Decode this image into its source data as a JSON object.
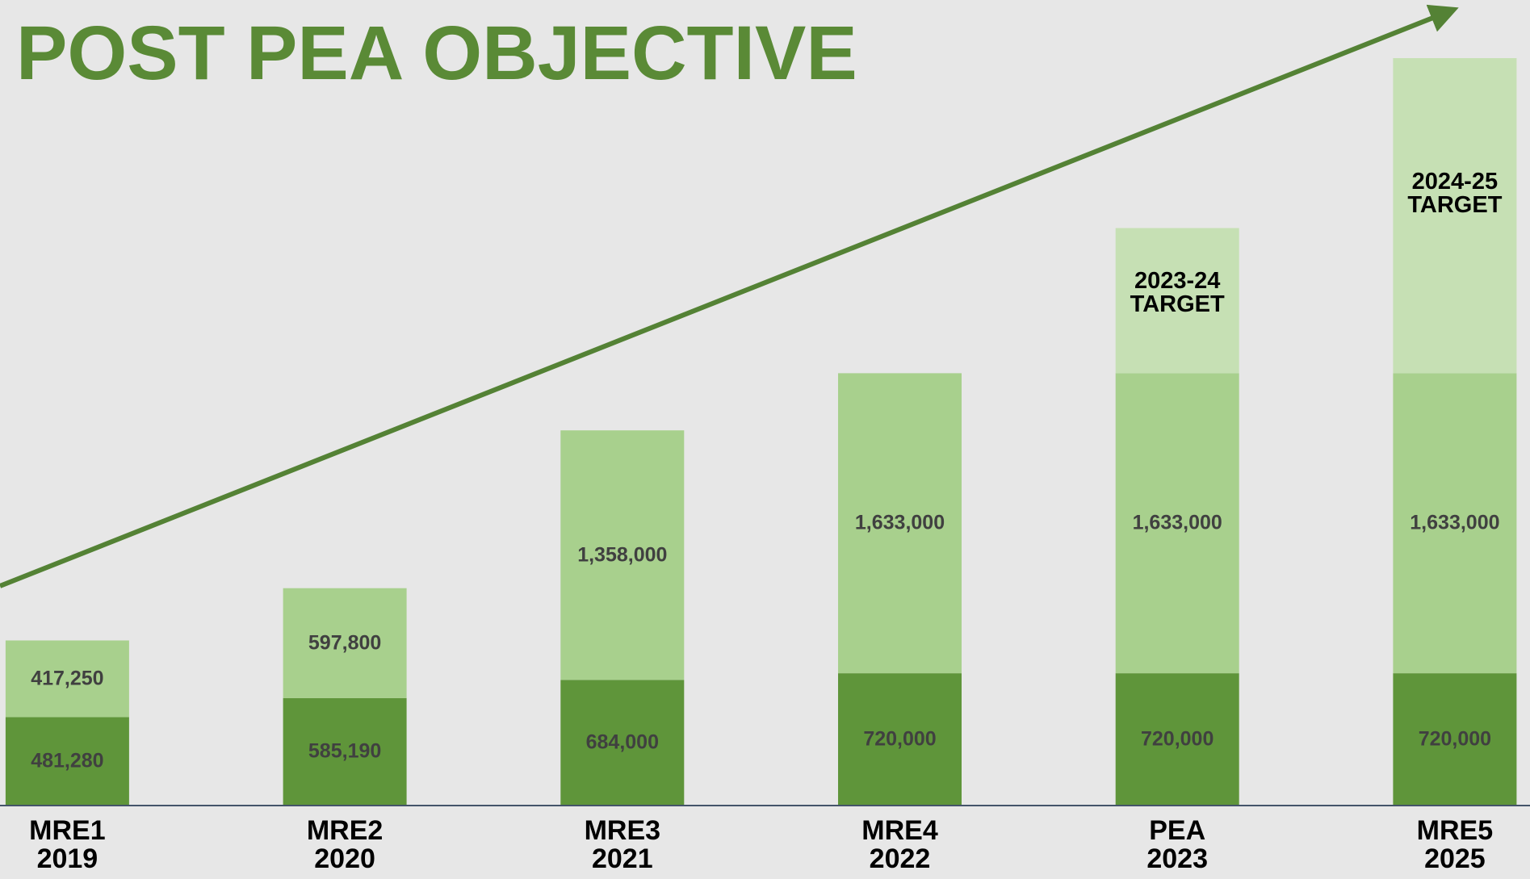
{
  "chart_data": {
    "type": "stacked_bar",
    "title": "POST PEA OBJECTIVE",
    "categories": [
      "MRE1\n2019",
      "MRE2\n2020",
      "MRE3\n2021",
      "MRE4\n2022",
      "PEA\n2023",
      "MRE5\n2025"
    ],
    "series": [
      {
        "color": "#5f953a",
        "values": [
          481280,
          585190,
          684000,
          720000,
          720000,
          720000
        ],
        "value_labels": [
          "481,280",
          "585,190",
          "684,000",
          "720,000",
          "720,000",
          "720,000"
        ]
      },
      {
        "color": "#a8d08d",
        "values": [
          417250,
          597800,
          1358000,
          1633000,
          1633000,
          1633000
        ],
        "value_labels": [
          "417,250",
          "597,800",
          "1,358,000",
          "1,633,000",
          "1,633,000",
          "1,633,000"
        ]
      },
      {
        "color": "#c6e0b4",
        "values": [
          null,
          null,
          null,
          null,
          790000,
          1715000
        ],
        "value_labels": [
          null,
          null,
          null,
          null,
          "2023-24\nTARGET",
          "2024-25\nTARGET"
        ]
      }
    ],
    "trend_arrow_color": "#548235"
  }
}
